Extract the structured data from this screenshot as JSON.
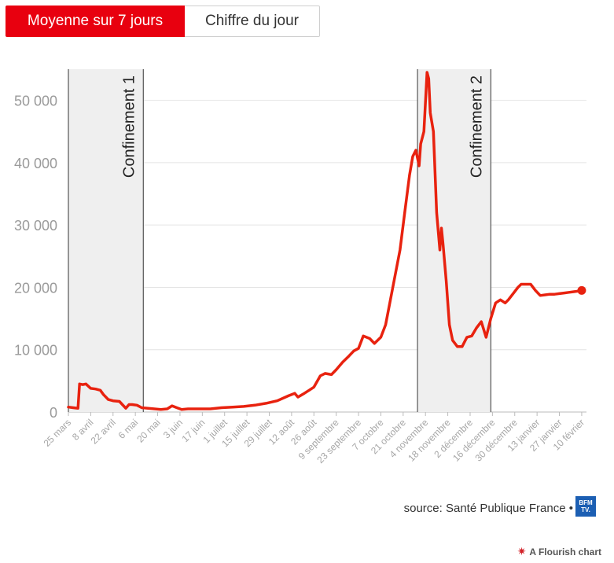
{
  "toggle": {
    "active_label": "Moyenne sur 7 jours",
    "inactive_label": "Chiffre du jour"
  },
  "chart_data": {
    "type": "line",
    "title": "",
    "xlabel": "",
    "ylabel": "",
    "ylim": [
      0,
      55000
    ],
    "y_ticks": [
      0,
      10000,
      20000,
      30000,
      40000,
      50000
    ],
    "y_tick_labels": [
      "0",
      "10 000",
      "20 000",
      "30 000",
      "40 000",
      "50 000"
    ],
    "x_range": [
      "2020-03-25",
      "2021-02-13"
    ],
    "x_ticks": [
      "2020-03-25",
      "2020-04-08",
      "2020-04-22",
      "2020-05-06",
      "2020-05-20",
      "2020-06-03",
      "2020-06-17",
      "2020-07-01",
      "2020-07-15",
      "2020-07-29",
      "2020-08-12",
      "2020-08-26",
      "2020-09-09",
      "2020-09-23",
      "2020-10-07",
      "2020-10-21",
      "2020-11-04",
      "2020-11-18",
      "2020-12-02",
      "2020-12-16",
      "2020-12-30",
      "2021-01-13",
      "2021-01-27",
      "2021-02-10"
    ],
    "x_tick_labels": [
      "25 mars",
      "8 avril",
      "22 avril",
      "6 mai",
      "20 mai",
      "3 juin",
      "17 juin",
      "1 juillet",
      "15 juillet",
      "29 juillet",
      "12 août",
      "26 août",
      "9 septembre",
      "23 septembre",
      "7 octobre",
      "21 octobre",
      "4 novembre",
      "18 novembre",
      "2 décembre",
      "16 décembre",
      "30 décembre",
      "13 janvier",
      "27 janvier",
      "10 février"
    ],
    "grid": true,
    "bands": [
      {
        "label": "Confinement 1",
        "start": "2020-03-17",
        "end": "2020-05-11"
      },
      {
        "label": "Confinement 2",
        "start": "2020-10-30",
        "end": "2020-12-15"
      }
    ],
    "series": [
      {
        "color": "#e8220f",
        "x": [
          "2020-03-25",
          "2020-03-28",
          "2020-03-31",
          "2020-04-01",
          "2020-04-03",
          "2020-04-05",
          "2020-04-08",
          "2020-04-11",
          "2020-04-14",
          "2020-04-16",
          "2020-04-19",
          "2020-04-22",
          "2020-04-26",
          "2020-04-30",
          "2020-05-02",
          "2020-05-04",
          "2020-05-07",
          "2020-05-10",
          "2020-05-14",
          "2020-05-18",
          "2020-05-22",
          "2020-05-26",
          "2020-05-29",
          "2020-06-01",
          "2020-06-04",
          "2020-06-08",
          "2020-06-15",
          "2020-06-22",
          "2020-06-29",
          "2020-07-06",
          "2020-07-13",
          "2020-07-20",
          "2020-07-27",
          "2020-08-03",
          "2020-08-10",
          "2020-08-14",
          "2020-08-16",
          "2020-08-20",
          "2020-08-23",
          "2020-08-26",
          "2020-08-30",
          "2020-09-02",
          "2020-09-06",
          "2020-09-09",
          "2020-09-13",
          "2020-09-17",
          "2020-09-20",
          "2020-09-23",
          "2020-09-26",
          "2020-09-30",
          "2020-10-03",
          "2020-10-07",
          "2020-10-10",
          "2020-10-13",
          "2020-10-16",
          "2020-10-19",
          "2020-10-22",
          "2020-10-25",
          "2020-10-27",
          "2020-10-29",
          "2020-10-31",
          "2020-11-01",
          "2020-11-03",
          "2020-11-05",
          "2020-11-06",
          "2020-11-07",
          "2020-11-09",
          "2020-11-11",
          "2020-11-13",
          "2020-11-14",
          "2020-11-15",
          "2020-11-17",
          "2020-11-19",
          "2020-11-21",
          "2020-11-24",
          "2020-11-27",
          "2020-11-30",
          "2020-12-03",
          "2020-12-06",
          "2020-12-09",
          "2020-12-12",
          "2020-12-15",
          "2020-12-18",
          "2020-12-21",
          "2020-12-24",
          "2020-12-26",
          "2020-12-29",
          "2021-01-01",
          "2021-01-03",
          "2021-01-06",
          "2021-01-09",
          "2021-01-12",
          "2021-01-15",
          "2021-01-18",
          "2021-01-21",
          "2021-01-24",
          "2021-01-27",
          "2021-01-30",
          "2021-02-02",
          "2021-02-05",
          "2021-02-08",
          "2021-02-10"
        ],
        "y": [
          800,
          700,
          600,
          4500,
          4400,
          4500,
          3800,
          3700,
          3500,
          2800,
          2000,
          1800,
          1700,
          600,
          1200,
          1200,
          1100,
          700,
          600,
          500,
          400,
          500,
          1000,
          700,
          400,
          500,
          500,
          500,
          700,
          800,
          900,
          1100,
          1400,
          1800,
          2600,
          3000,
          2400,
          3000,
          3500,
          4000,
          5800,
          6200,
          6000,
          6800,
          8000,
          9000,
          9800,
          10200,
          12200,
          11800,
          11000,
          12000,
          14000,
          18000,
          22000,
          26000,
          32000,
          38000,
          41000,
          42000,
          39500,
          43000,
          45000,
          54500,
          53500,
          48000,
          45000,
          32000,
          26000,
          29500,
          27000,
          21000,
          14000,
          11500,
          10500,
          10500,
          12000,
          12200,
          13500,
          14500,
          12000,
          15000,
          17500,
          18000,
          17500,
          18000,
          19000,
          20000,
          20500,
          20500,
          20500,
          19500,
          18700,
          18800,
          18900,
          18900,
          19000,
          19100,
          19200,
          19300,
          19400,
          19500
        ]
      }
    ]
  },
  "source": {
    "text": "source: Santé Publique France •",
    "logo_text": "BFM TV."
  },
  "credit": {
    "text": "A Flourish chart"
  }
}
